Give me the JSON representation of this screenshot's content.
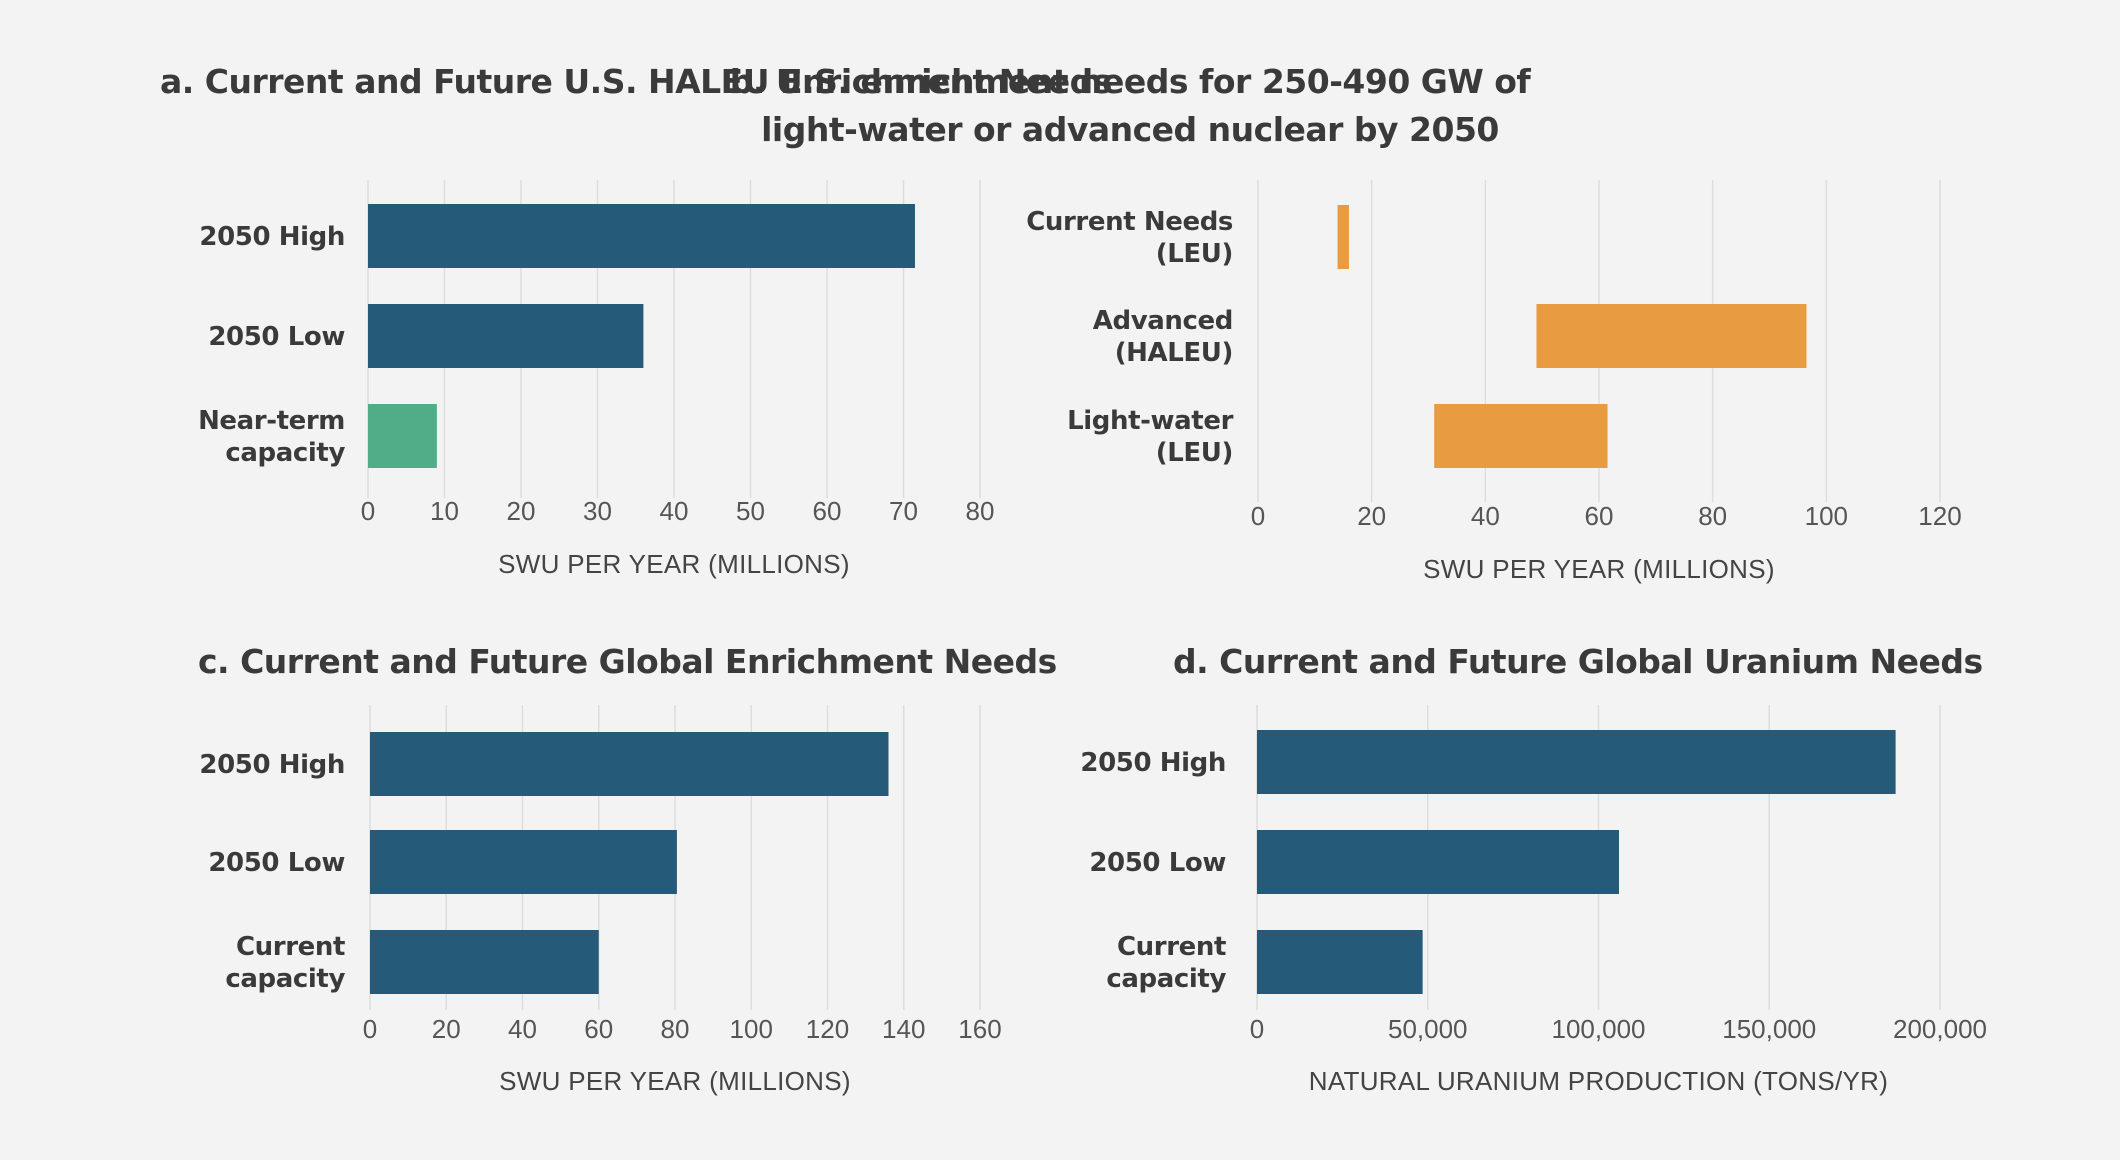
{
  "chart_data": [
    {
      "id": "a",
      "type": "bar",
      "orientation": "horizontal",
      "title": "a.  Current and Future U.S. HALEU Enrichment Needs",
      "categories": [
        "2050 High",
        "2050 Low",
        "Near-term|capacity"
      ],
      "values": [
        71.5,
        36,
        9
      ],
      "colors": [
        "#265a79",
        "#265a79",
        "#51ad88"
      ],
      "xlabel": "SWU PER YEAR (MILLIONS)",
      "ylabel": "",
      "xlim": [
        0,
        80
      ],
      "xticks": [
        0,
        10,
        20,
        30,
        40,
        50,
        60,
        70,
        80
      ],
      "tick_labels": [
        "0",
        "10",
        "20",
        "30",
        "40",
        "50",
        "60",
        "70",
        "80"
      ],
      "grid": true
    },
    {
      "id": "b",
      "type": "bar",
      "orientation": "horizontal",
      "subtype": "floating-range",
      "title": "b.  U.S. enrichment needs for 250-490 GW of|light-water or advanced nuclear by 2050",
      "categories": [
        "Current Needs|(LEU)",
        "Advanced|(HALEU)",
        "Light-water|(LEU)"
      ],
      "ranges": [
        [
          14,
          16
        ],
        [
          49,
          96.5
        ],
        [
          31,
          61.5
        ]
      ],
      "colors": [
        "#e99b40",
        "#e99b40",
        "#e99b40"
      ],
      "xlabel": "SWU PER YEAR (MILLIONS)",
      "ylabel": "",
      "xlim": [
        0,
        120
      ],
      "xticks": [
        0,
        20,
        40,
        60,
        80,
        100,
        120
      ],
      "tick_labels": [
        "0",
        "20",
        "40",
        "60",
        "80",
        "100",
        "120"
      ],
      "grid": true
    },
    {
      "id": "c",
      "type": "bar",
      "orientation": "horizontal",
      "title": "c.  Current and Future Global Enrichment Needs",
      "categories": [
        "2050 High",
        "2050 Low",
        "Current|capacity"
      ],
      "values": [
        136,
        80.5,
        60
      ],
      "colors": [
        "#265a79",
        "#265a79",
        "#265a79"
      ],
      "xlabel": "SWU PER YEAR (MILLIONS)",
      "ylabel": "",
      "xlim": [
        0,
        160
      ],
      "xticks": [
        0,
        20,
        40,
        60,
        80,
        100,
        120,
        140,
        160
      ],
      "tick_labels": [
        "0",
        "20",
        "40",
        "60",
        "80",
        "100",
        "120",
        "140",
        "160"
      ],
      "grid": true
    },
    {
      "id": "d",
      "type": "bar",
      "orientation": "horizontal",
      "title": "d.  Current and Future Global Uranium Needs",
      "categories": [
        "2050 High",
        "2050 Low",
        "Current|capacity"
      ],
      "values": [
        187000,
        106000,
        48500
      ],
      "colors": [
        "#265a79",
        "#265a79",
        "#265a79"
      ],
      "xlabel": "NATURAL URANIUM PRODUCTION (TONS/YR)",
      "ylabel": "",
      "xlim": [
        0,
        200000
      ],
      "xticks": [
        0,
        50000,
        100000,
        150000,
        200000
      ],
      "tick_labels": [
        "0",
        "50,000",
        "100,000",
        "150,000",
        "200,000"
      ],
      "grid": true
    }
  ]
}
